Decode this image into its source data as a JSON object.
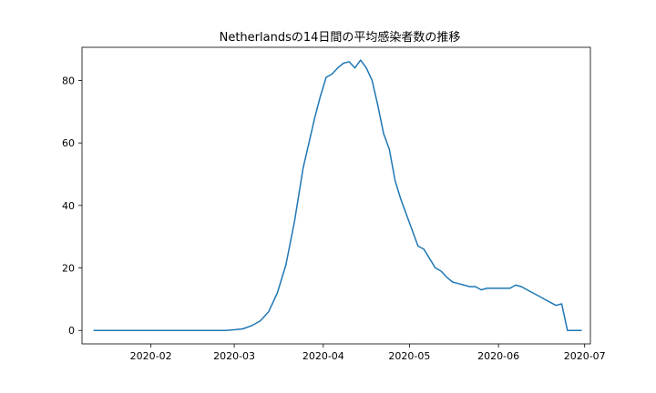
{
  "chart_data": {
    "type": "line",
    "title": "Netherlandsの14日間の平均感染者数の推移",
    "xlabel": "",
    "ylabel": "",
    "x_range": [
      "2020-01-08",
      "2020-07-03"
    ],
    "ylim": [
      -4.3,
      90.6
    ],
    "x_ticks": [
      "2020-02-01",
      "2020-03-01",
      "2020-04-01",
      "2020-05-01",
      "2020-06-01",
      "2020-07-01"
    ],
    "x_tick_labels": [
      "2020-02",
      "2020-03",
      "2020-04",
      "2020-05",
      "2020-06",
      "2020-07"
    ],
    "y_ticks": [
      0,
      20,
      40,
      60,
      80
    ],
    "grid": false,
    "line_color": "#1f77b4",
    "series": [
      {
        "x": [
          "2020-01-12",
          "2020-02-27",
          "2020-03-01",
          "2020-03-04",
          "2020-03-07",
          "2020-03-10",
          "2020-03-13",
          "2020-03-16",
          "2020-03-19",
          "2020-03-22",
          "2020-03-25",
          "2020-03-27",
          "2020-03-29",
          "2020-03-31",
          "2020-04-02",
          "2020-04-04",
          "2020-04-06",
          "2020-04-08",
          "2020-04-10",
          "2020-04-12",
          "2020-04-14",
          "2020-04-16",
          "2020-04-18",
          "2020-04-20",
          "2020-04-22",
          "2020-04-24",
          "2020-04-26",
          "2020-04-28",
          "2020-04-30",
          "2020-05-02",
          "2020-05-04",
          "2020-05-06",
          "2020-05-08",
          "2020-05-10",
          "2020-05-12",
          "2020-05-14",
          "2020-05-16",
          "2020-05-18",
          "2020-05-20",
          "2020-05-22",
          "2020-05-24",
          "2020-05-26",
          "2020-05-28",
          "2020-05-30",
          "2020-06-01",
          "2020-06-03",
          "2020-06-05",
          "2020-06-07",
          "2020-06-09",
          "2020-06-11",
          "2020-06-13",
          "2020-06-15",
          "2020-06-17",
          "2020-06-19",
          "2020-06-21",
          "2020-06-23",
          "2020-06-25",
          "2020-06-27",
          "2020-06-29",
          "2020-06-30"
        ],
        "y": [
          0.0,
          0.0,
          0.2,
          0.5,
          1.5,
          3.0,
          6.0,
          12.0,
          21.0,
          35.0,
          52.0,
          60.0,
          68.0,
          75.0,
          81.0,
          82.0,
          84.0,
          85.5,
          86.0,
          84.0,
          86.5,
          84.0,
          80.0,
          72.0,
          63.0,
          58.0,
          48.0,
          42.0,
          37.0,
          32.0,
          27.0,
          26.0,
          23.0,
          20.0,
          19.0,
          17.0,
          15.5,
          15.0,
          14.5,
          14.0,
          14.0,
          13.0,
          13.5,
          13.5,
          13.5,
          13.5,
          13.5,
          14.5,
          14.0,
          13.0,
          12.0,
          11.0,
          10.0,
          9.0,
          8.0,
          8.5,
          0,
          0,
          0,
          0
        ]
      }
    ]
  }
}
